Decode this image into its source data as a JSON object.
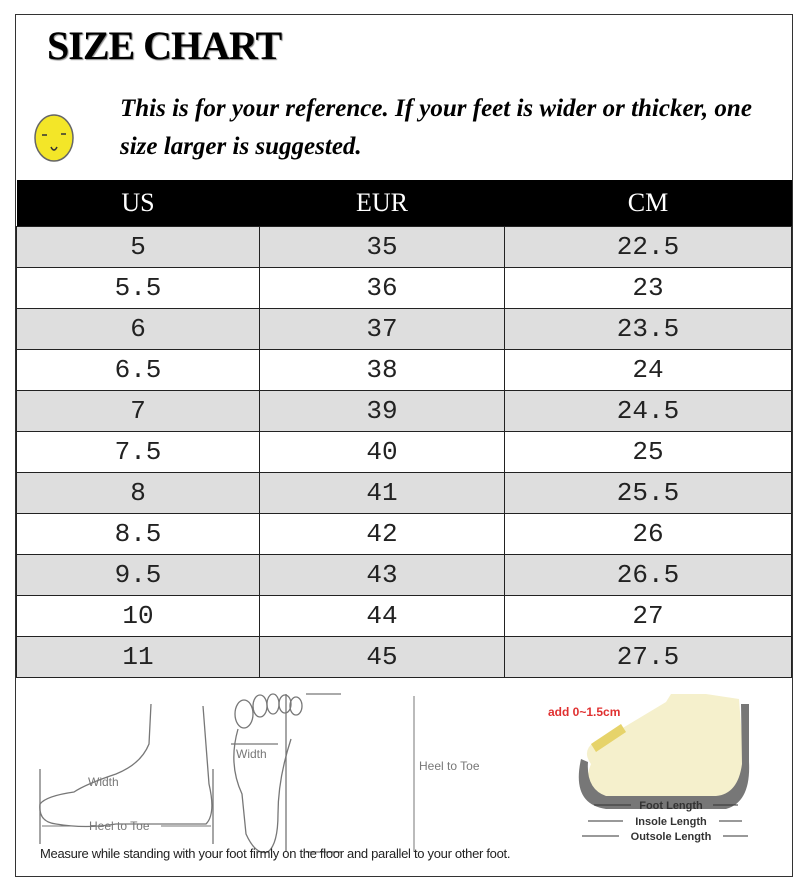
{
  "title": "SIZE CHART",
  "note": "This is for your reference. If your feet is wider or thicker, one size larger is suggested.",
  "face_icon": "smiling-face-icon",
  "table": {
    "headers": [
      "US",
      "EUR",
      "CM"
    ],
    "rows": [
      [
        "5",
        "35",
        "22.5"
      ],
      [
        "5.5",
        "36",
        "23"
      ],
      [
        "6",
        "37",
        "23.5"
      ],
      [
        "6.5",
        "38",
        "24"
      ],
      [
        "7",
        "39",
        "24.5"
      ],
      [
        "7.5",
        "40",
        "25"
      ],
      [
        "8",
        "41",
        "25.5"
      ],
      [
        "8.5",
        "42",
        "26"
      ],
      [
        "9.5",
        "43",
        "26.5"
      ],
      [
        "10",
        "44",
        "27"
      ],
      [
        "11",
        "45",
        "27.5"
      ]
    ]
  },
  "illustration": {
    "side_width": "Width",
    "side_heel_to_toe": "Heel to Toe",
    "sole_width": "Width",
    "sole_heel_to_toe": "Heel to Toe",
    "add": "add 0~1.5cm",
    "foot_length": "Foot Length",
    "insole_length": "Insole Length",
    "outsole_length": "Outsole Length"
  },
  "caption": "Measure while standing with your foot firmly on the floor and parallel to your other foot."
}
